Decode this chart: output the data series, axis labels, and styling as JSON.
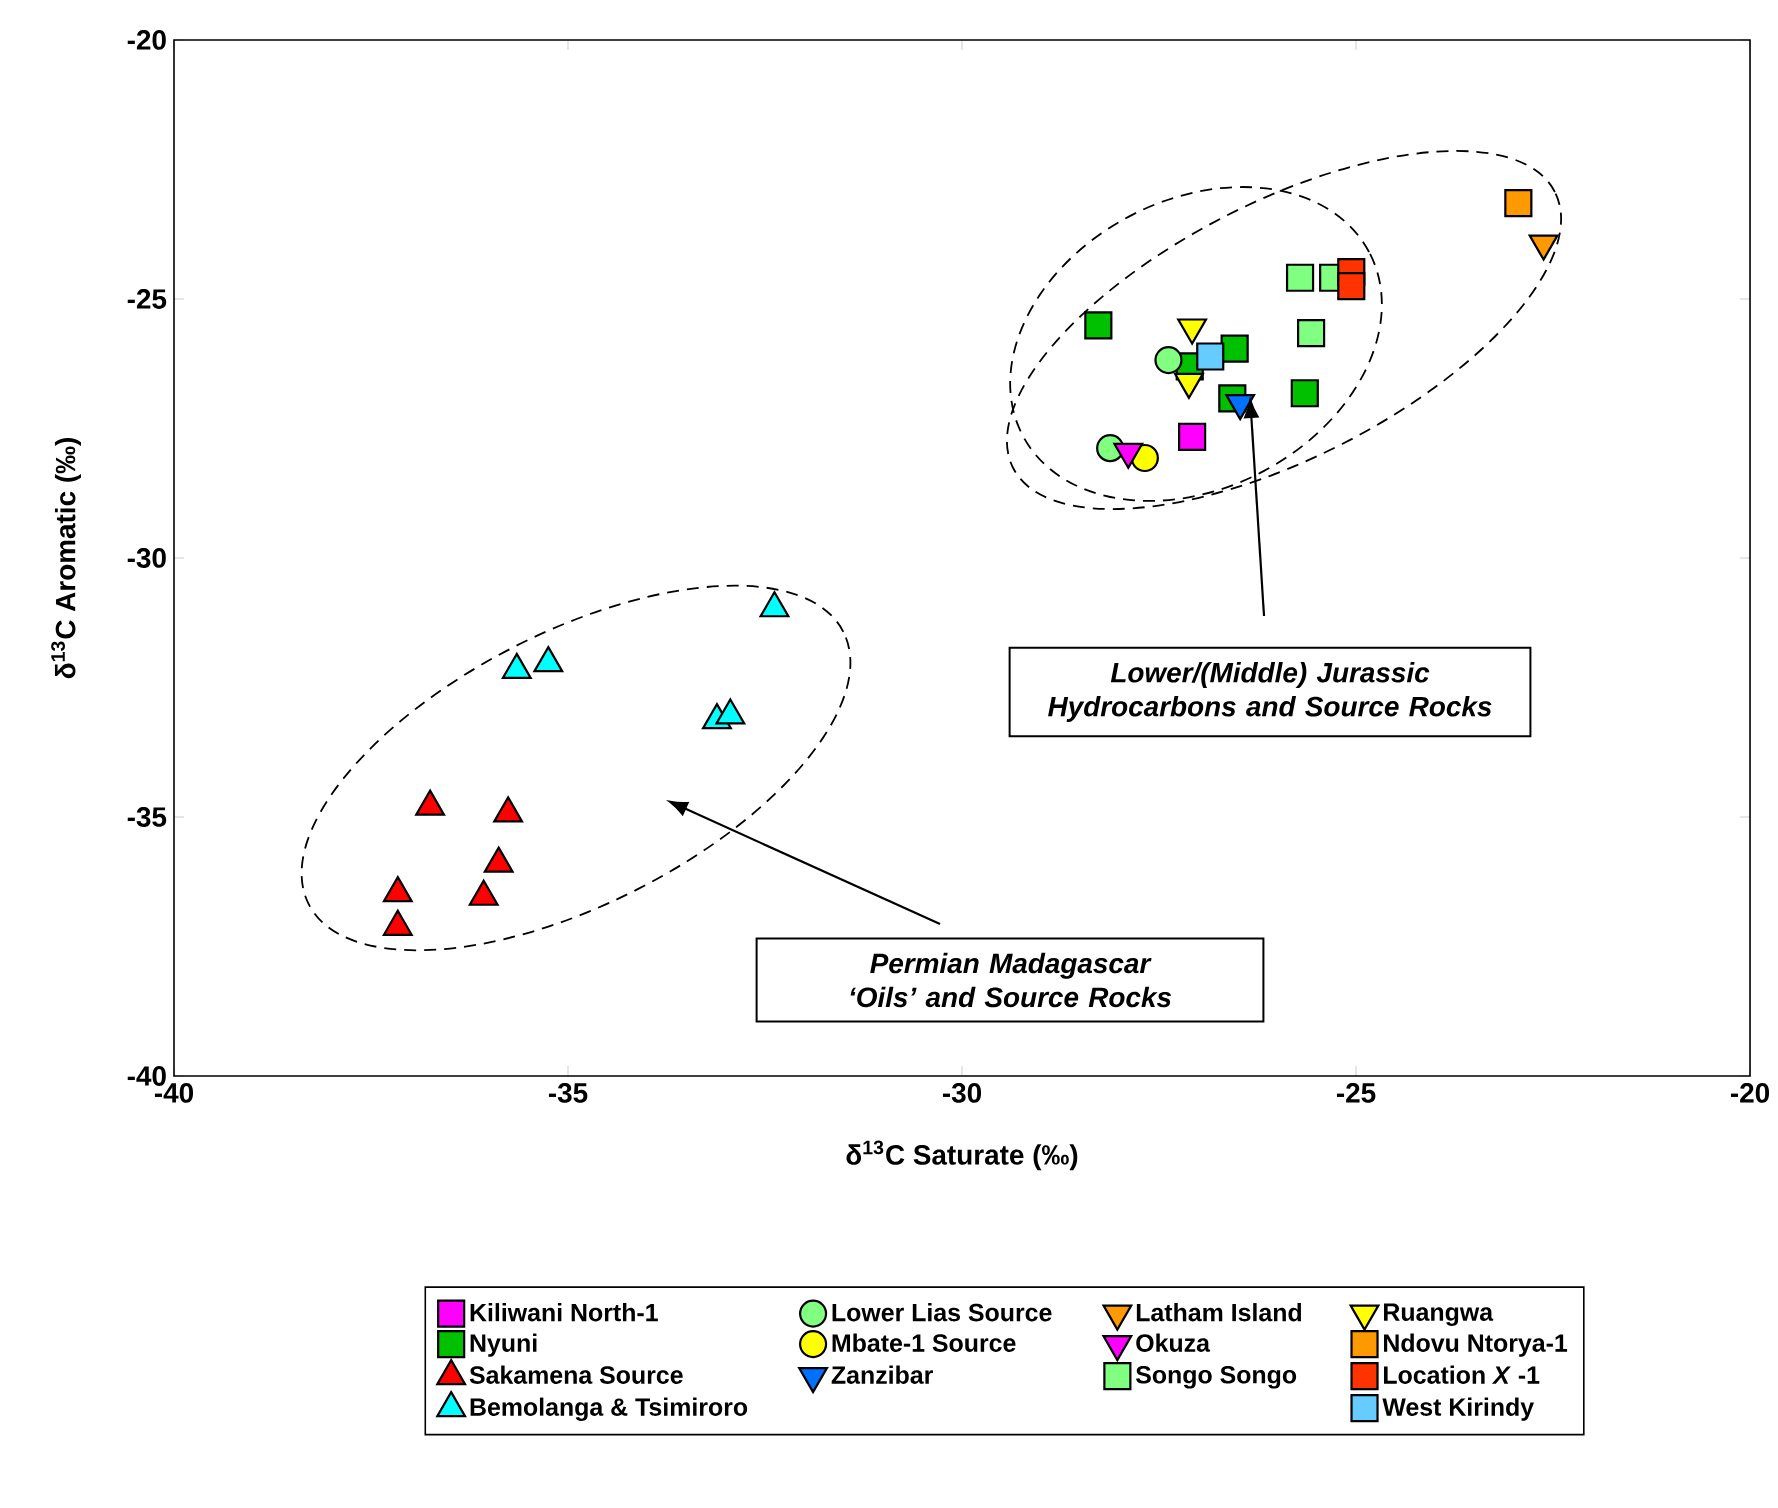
{
  "chart_data": {
    "type": "scatter",
    "xlabel": "δ$^{13}$C Saturate (‰)",
    "ylabel": "δ$^{13}$C Aromatic (‰)",
    "xlim": [
      -40,
      -20
    ],
    "ylim": [
      -40,
      -20
    ],
    "xticks": [
      -40,
      -35,
      -30,
      -25,
      -20
    ],
    "yticks": [
      -40,
      -35,
      -30,
      -25,
      -20
    ],
    "legend": "bottom",
    "series": [
      {
        "name": "Kiliwani North-1",
        "color": "#ff00ff",
        "marker": "square",
        "x": [
          -27.08
        ],
        "values": [
          -27.66
        ]
      },
      {
        "name": "Nyuni",
        "color": "#00c000",
        "marker": "square",
        "x": [
          -28.27,
          -26.54,
          -26.57,
          -25.65,
          -27.11
        ],
        "values": [
          -25.51,
          -25.96,
          -26.92,
          -26.82,
          -26.3
        ]
      },
      {
        "name": "Sakamena Source",
        "color": "#ff0000",
        "marker": "triangle",
        "x": [
          -36.75,
          -35.76,
          -35.88,
          -37.16,
          -36.07,
          -37.16
        ],
        "values": [
          -34.8,
          -34.93,
          -35.9,
          -36.47,
          -36.54,
          -37.12
        ]
      },
      {
        "name": "Bemolanga & Tsimiroro",
        "color": "#00ffff",
        "marker": "triangle",
        "x": [
          -32.38,
          -35.65,
          -35.25,
          -33.11,
          -32.94
        ],
        "values": [
          -30.97,
          -32.16,
          -32.03,
          -33.13,
          -33.04
        ]
      },
      {
        "name": "Lower Lias Source",
        "color": "#80ff80",
        "marker": "circle",
        "x": [
          -27.38,
          -28.12
        ],
        "values": [
          -26.18,
          -27.88
        ]
      },
      {
        "name": "Mbate-1 Source",
        "color": "#ffff00",
        "marker": "circle",
        "x": [
          -27.68
        ],
        "values": [
          -28.07
        ]
      },
      {
        "name": "Zanzibar",
        "color": "#0070ff",
        "marker": "triangle-down",
        "x": [
          -26.47
        ],
        "values": [
          -27.01
        ]
      },
      {
        "name": "Latham Island",
        "color": "#ff9900",
        "marker": "triangle-down",
        "x": [
          -22.62
        ],
        "values": [
          -23.93
        ]
      },
      {
        "name": "Okuza",
        "color": "#ff00ff",
        "marker": "triangle-down",
        "x": [
          -27.89
        ],
        "values": [
          -27.95
        ]
      },
      {
        "name": "Songo Songo",
        "color": "#80ff80",
        "marker": "square",
        "x": [
          -25.71,
          -25.29,
          -25.57
        ],
        "values": [
          -24.59,
          -24.59,
          -25.66
        ]
      },
      {
        "name": "Ruangwa",
        "color": "#ffff00",
        "marker": "triangle-down",
        "x": [
          -27.08,
          -27.12
        ],
        "values": [
          -25.55,
          -26.6
        ]
      },
      {
        "name": "Ndovu Ntorya-1",
        "color": "#ff9900",
        "marker": "square",
        "x": [
          -22.94
        ],
        "values": [
          -23.15
        ]
      },
      {
        "name": "Location *X* -1",
        "color": "#ff3300",
        "marker": "square",
        "x": [
          -25.06,
          -25.06
        ],
        "values": [
          -24.48,
          -24.75
        ]
      },
      {
        "name": "West Kirindy",
        "color": "#66ccff",
        "marker": "square",
        "x": [
          -26.85
        ],
        "values": [
          -26.11
        ]
      }
    ],
    "annotations": [
      "Lower/(Middle) Jurassic Hydrocarbons and Source Rocks",
      "Permian Madagascar ‘Oils’ and Source Rocks"
    ]
  }
}
